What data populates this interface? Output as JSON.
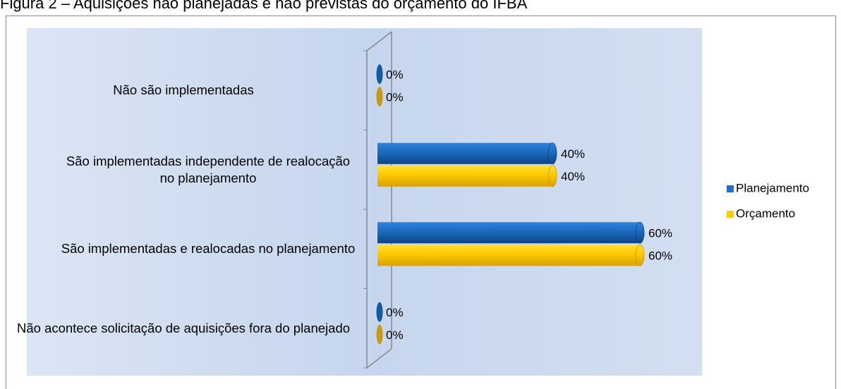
{
  "chart_data": {
    "type": "bar",
    "orientation": "horizontal",
    "title": "Figura 2 – Aquisições não planejadas e não previstas do orçamento do IFBA",
    "categories": [
      "Não são implementadas",
      "São implementadas independente de realocação no planejamento",
      "São implementadas e realocadas no planejamento",
      "Não acontece  solicitação de aquisições fora do planejado"
    ],
    "series": [
      {
        "name": "Planejamento",
        "color": "#1f6fc5",
        "values": [
          0,
          40,
          60,
          0
        ],
        "value_labels": [
          "0%",
          "40%",
          "60%",
          "0%"
        ]
      },
      {
        "name": "Orçamento",
        "color": "#ffcc00",
        "values": [
          0,
          40,
          60,
          0
        ],
        "value_labels": [
          "0%",
          "40%",
          "60%",
          "0%"
        ]
      }
    ],
    "xlim": [
      0,
      75
    ],
    "legend": "right"
  }
}
